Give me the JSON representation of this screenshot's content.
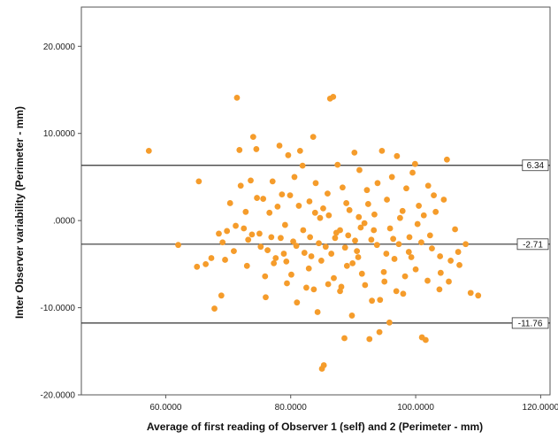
{
  "chart_data": {
    "type": "scatter",
    "xlabel": "Average of first reading of Observer 1 (self) and 2 (Perimeter - mm)",
    "ylabel": "Inter Observer variability (Perimeter - mm)",
    "xlim": [
      46.5,
      121.5
    ],
    "ylim": [
      -20,
      24.5
    ],
    "xticks": [
      60,
      80,
      100,
      120
    ],
    "xtick_labels": [
      "60.0000",
      "80.0000",
      "100.0000",
      "120.0000"
    ],
    "yticks": [
      20,
      10,
      0,
      -10,
      -20
    ],
    "ytick_labels": [
      "20.0000",
      "10.0000",
      ".0000",
      "-10.0000",
      "-20.0000"
    ],
    "grid": false,
    "point_color": "#f59c2b",
    "reference_lines": [
      {
        "y": 6.34,
        "label": "6.34"
      },
      {
        "y": -2.71,
        "label": "-2.71"
      },
      {
        "y": -11.76,
        "label": "-11.76"
      }
    ],
    "points": [
      [
        57.3,
        8.0
      ],
      [
        62.0,
        -2.8
      ],
      [
        65.3,
        4.5
      ],
      [
        65.0,
        -5.3
      ],
      [
        67.3,
        -4.3
      ],
      [
        67.8,
        -10.1
      ],
      [
        68.5,
        -1.5
      ],
      [
        69.1,
        -2.5
      ],
      [
        69.8,
        -1.2
      ],
      [
        70.3,
        2.0
      ],
      [
        71.4,
        14.1
      ],
      [
        71.8,
        8.1
      ],
      [
        72.5,
        -0.9
      ],
      [
        73.0,
        -5.2
      ],
      [
        73.6,
        4.6
      ],
      [
        74.0,
        9.6
      ],
      [
        74.5,
        8.2
      ],
      [
        75.0,
        -1.5
      ],
      [
        75.6,
        2.5
      ],
      [
        76.0,
        -8.8
      ],
      [
        76.6,
        0.9
      ],
      [
        77.1,
        4.5
      ],
      [
        77.6,
        -4.3
      ],
      [
        78.2,
        8.6
      ],
      [
        78.6,
        3.0
      ],
      [
        79.1,
        -0.5
      ],
      [
        79.6,
        7.5
      ],
      [
        80.1,
        -6.2
      ],
      [
        80.6,
        5.0
      ],
      [
        81.0,
        -9.4
      ],
      [
        81.5,
        8.0
      ],
      [
        82.0,
        -1.1
      ],
      [
        82.5,
        -7.7
      ],
      [
        83.0,
        2.2
      ],
      [
        83.3,
        -4.1
      ],
      [
        83.6,
        9.6
      ],
      [
        84.0,
        4.3
      ],
      [
        84.3,
        -10.5
      ],
      [
        84.7,
        0.3
      ],
      [
        85.0,
        -17.0
      ],
      [
        85.3,
        -16.6
      ],
      [
        85.6,
        -3.0
      ],
      [
        86.0,
        -7.3
      ],
      [
        86.3,
        14.0
      ],
      [
        86.8,
        14.2
      ],
      [
        87.1,
        -2.0
      ],
      [
        87.5,
        6.4
      ],
      [
        87.9,
        -8.1
      ],
      [
        88.3,
        3.8
      ],
      [
        88.6,
        -13.5
      ],
      [
        89.0,
        -5.2
      ],
      [
        89.4,
        1.2
      ],
      [
        89.8,
        -10.9
      ],
      [
        90.2,
        7.8
      ],
      [
        90.6,
        -3.5
      ],
      [
        91.0,
        5.8
      ],
      [
        91.4,
        -6.1
      ],
      [
        91.8,
        -0.3
      ],
      [
        92.2,
        3.5
      ],
      [
        92.6,
        -13.6
      ],
      [
        93.0,
        -9.2
      ],
      [
        93.4,
        0.7
      ],
      [
        93.8,
        -2.8
      ],
      [
        94.2,
        -12.8
      ],
      [
        94.6,
        8.0
      ],
      [
        95.0,
        -7.0
      ],
      [
        95.4,
        2.4
      ],
      [
        95.8,
        -11.7
      ],
      [
        96.2,
        5.0
      ],
      [
        96.6,
        -4.4
      ],
      [
        97.0,
        7.4
      ],
      [
        97.5,
        0.3
      ],
      [
        98.0,
        -8.4
      ],
      [
        98.5,
        3.7
      ],
      [
        99.0,
        -1.9
      ],
      [
        99.5,
        5.5
      ],
      [
        100.0,
        -5.6
      ],
      [
        100.5,
        1.7
      ],
      [
        101.0,
        -13.4
      ],
      [
        101.6,
        -13.7
      ],
      [
        102.0,
        4.0
      ],
      [
        102.6,
        -3.2
      ],
      [
        103.2,
        1.0
      ],
      [
        103.8,
        -7.9
      ],
      [
        104.5,
        2.4
      ],
      [
        105.0,
        7.0
      ],
      [
        105.6,
        -4.6
      ],
      [
        106.3,
        -1.0
      ],
      [
        107.0,
        -5.1
      ],
      [
        108.0,
        -2.7
      ],
      [
        108.8,
        -8.3
      ],
      [
        110.0,
        -8.6
      ],
      [
        66.4,
        -5.0
      ],
      [
        68.9,
        -8.6
      ],
      [
        70.9,
        -3.5
      ],
      [
        72.0,
        4.0
      ],
      [
        73.2,
        -2.2
      ],
      [
        74.6,
        2.6
      ],
      [
        75.9,
        -6.4
      ],
      [
        76.9,
        -1.9
      ],
      [
        77.9,
        1.6
      ],
      [
        78.9,
        -3.8
      ],
      [
        79.9,
        2.9
      ],
      [
        80.9,
        -2.9
      ],
      [
        81.9,
        6.3
      ],
      [
        82.9,
        -5.5
      ],
      [
        83.9,
        0.9
      ],
      [
        84.9,
        -4.6
      ],
      [
        85.9,
        3.1
      ],
      [
        86.9,
        -6.6
      ],
      [
        87.9,
        -1.1
      ],
      [
        88.9,
        2.0
      ],
      [
        89.9,
        -4.9
      ],
      [
        90.9,
        0.4
      ],
      [
        91.9,
        -7.4
      ],
      [
        92.9,
        -2.2
      ],
      [
        93.9,
        4.3
      ],
      [
        94.9,
        -5.9
      ],
      [
        95.9,
        -0.9
      ],
      [
        96.9,
        -8.1
      ],
      [
        97.9,
        1.1
      ],
      [
        98.9,
        -3.6
      ],
      [
        99.9,
        6.5
      ],
      [
        100.9,
        -2.5
      ],
      [
        101.9,
        -6.9
      ],
      [
        102.9,
        2.9
      ],
      [
        103.9,
        -4.1
      ],
      [
        76.3,
        -3.4
      ],
      [
        79.4,
        -7.2
      ],
      [
        81.3,
        1.7
      ],
      [
        83.7,
        -7.9
      ],
      [
        86.1,
        0.6
      ],
      [
        88.1,
        -7.6
      ],
      [
        90.3,
        -2.3
      ],
      [
        92.4,
        1.9
      ],
      [
        94.3,
        -9.1
      ],
      [
        96.4,
        -2.1
      ],
      [
        98.3,
        -6.4
      ],
      [
        100.3,
        -0.4
      ],
      [
        84.5,
        -2.6
      ],
      [
        85.2,
        1.4
      ],
      [
        86.5,
        -3.8
      ],
      [
        87.3,
        -1.4
      ],
      [
        88.7,
        -3.1
      ],
      [
        89.2,
        -1.7
      ],
      [
        90.8,
        -4.2
      ],
      [
        91.2,
        -0.8
      ],
      [
        82.2,
        -3.7
      ],
      [
        83.1,
        -1.9
      ],
      [
        80.4,
        -2.4
      ],
      [
        79.3,
        -4.7
      ],
      [
        78.4,
        -2.0
      ],
      [
        77.3,
        -4.9
      ],
      [
        93.3,
        -1.1
      ],
      [
        95.3,
        -3.8
      ],
      [
        97.3,
        -2.7
      ],
      [
        99.3,
        -4.2
      ],
      [
        75.2,
        -3.0
      ],
      [
        73.8,
        -1.6
      ],
      [
        72.8,
        1.0
      ],
      [
        71.2,
        -0.6
      ],
      [
        101.3,
        0.6
      ],
      [
        102.3,
        -1.7
      ],
      [
        104.0,
        -6.0
      ],
      [
        105.3,
        -7.0
      ],
      [
        106.8,
        -3.6
      ],
      [
        69.5,
        -4.5
      ]
    ]
  }
}
